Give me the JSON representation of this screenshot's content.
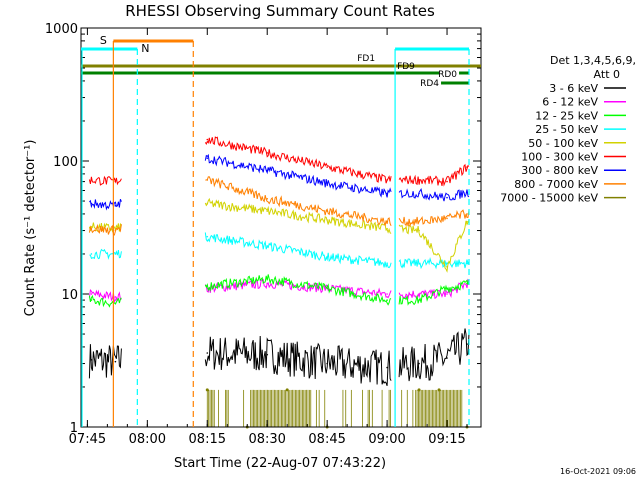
{
  "chart_data": {
    "type": "line",
    "title": "RHESSI Observing Summary Count Rates",
    "xlabel": "Start Time (22-Aug-07 07:43:22)",
    "ylabel": "Count Rate (s⁻¹ detector⁻¹)",
    "x_ticks": [
      "07:45",
      "08:00",
      "08:15",
      "08:30",
      "08:45",
      "09:00",
      "09:15"
    ],
    "x_tick_minutes": [
      45,
      60,
      75,
      90,
      105,
      120,
      135
    ],
    "x_range_minutes": [
      43.4,
      143.5
    ],
    "y_scale": "log",
    "ylim": [
      1,
      1000
    ],
    "y_ticks": [
      "1",
      "10",
      "100",
      "1000"
    ],
    "footer_date": "16-Oct-2021 09:06",
    "legend_header": [
      "Det 1,3,4,5,6,9,",
      "Att 0"
    ],
    "series": [
      {
        "name": "3 - 6 keV",
        "color": "#000000",
        "x": [
          46,
          52,
          75,
          90,
          105,
          120,
          128,
          135,
          140
        ],
        "y": [
          3.2,
          3.1,
          3.6,
          3.5,
          3.0,
          2.8,
          3.0,
          3.3,
          4.2
        ]
      },
      {
        "name": "6 - 12 keV",
        "color": "#ff00ff",
        "x": [
          46,
          52,
          75,
          90,
          105,
          120,
          128,
          135,
          140
        ],
        "y": [
          10,
          9.5,
          11,
          12,
          11,
          10,
          10,
          10,
          12
        ]
      },
      {
        "name": "12 - 25 keV",
        "color": "#00ff00",
        "x": [
          46,
          52,
          75,
          90,
          105,
          120,
          128,
          135,
          140
        ],
        "y": [
          9,
          8.5,
          11.5,
          13,
          11,
          9,
          9,
          11,
          12
        ]
      },
      {
        "name": "25 - 50 keV",
        "color": "#00ffff",
        "x": [
          46,
          52,
          75,
          90,
          105,
          120,
          128,
          135,
          140
        ],
        "y": [
          20,
          20,
          27,
          23,
          19,
          17,
          17,
          17,
          17
        ]
      },
      {
        "name": "50 - 100 keV",
        "color": "#d2d200",
        "x": [
          46,
          52,
          75,
          90,
          105,
          120,
          128,
          135,
          140
        ],
        "y": [
          32,
          31,
          48,
          42,
          36,
          31,
          30,
          16,
          35
        ]
      },
      {
        "name": "100 - 300 keV",
        "color": "#ff0000",
        "x": [
          46,
          52,
          75,
          90,
          105,
          120,
          128,
          135,
          140
        ],
        "y": [
          72,
          70,
          145,
          115,
          90,
          72,
          72,
          70,
          90
        ]
      },
      {
        "name": "300 - 800 keV",
        "color": "#0000ff",
        "x": [
          46,
          52,
          75,
          90,
          105,
          120,
          128,
          135,
          140
        ],
        "y": [
          48,
          46,
          105,
          85,
          68,
          57,
          57,
          53,
          58
        ]
      },
      {
        "name": "800 - 7000 keV",
        "color": "#ff8000",
        "x": [
          46,
          52,
          75,
          90,
          105,
          120,
          128,
          135,
          140
        ],
        "y": [
          31,
          30,
          72,
          52,
          42,
          35,
          35,
          37,
          40
        ]
      },
      {
        "name": "7000 - 15000 keV",
        "color": "#808000",
        "x": [
          75,
          85,
          95,
          105,
          128,
          133,
          140
        ],
        "y": [
          1.9,
          1.0,
          1.9,
          1.0,
          1.9,
          1.9,
          1.0
        ]
      }
    ],
    "annotations": [
      {
        "label": "S",
        "color": "#ff8000"
      },
      {
        "label": "N",
        "color": "#00ffff"
      },
      {
        "label": "FD1",
        "color": "#808000"
      },
      {
        "label": "FD9",
        "color": "#808000"
      },
      {
        "label": "RD0",
        "color": "#008000"
      },
      {
        "label": "RD4",
        "color": "#008000"
      }
    ]
  }
}
